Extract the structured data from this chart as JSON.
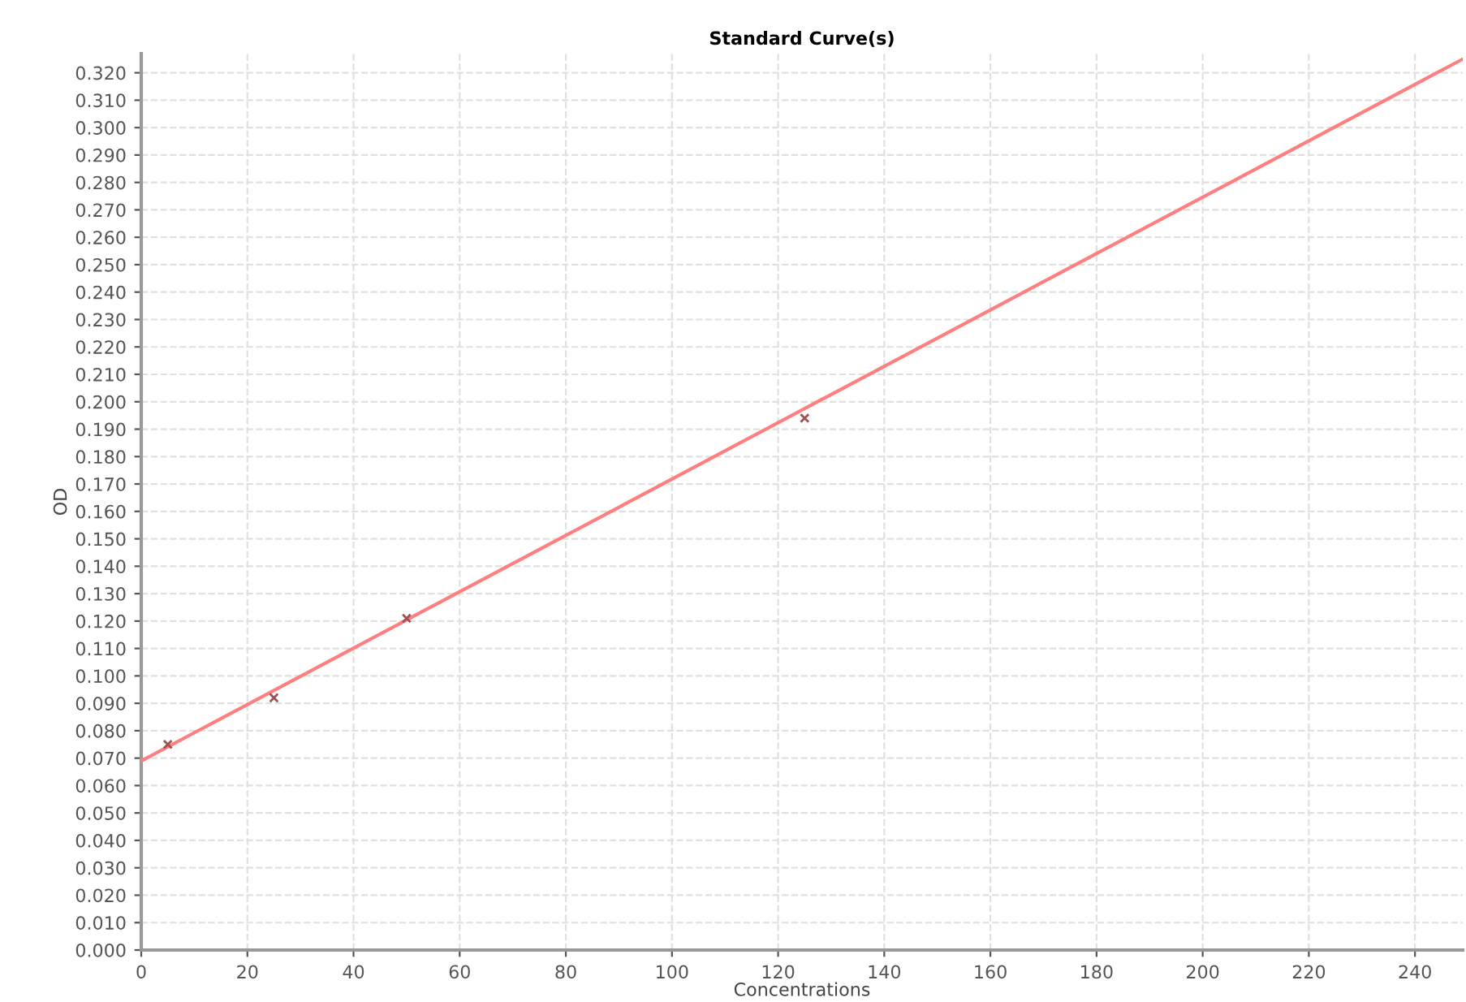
{
  "chart_data": {
    "type": "scatter",
    "title": "Standard Curve(s)",
    "xlabel": "Concentrations",
    "ylabel": "OD",
    "xlim": [
      0,
      249
    ],
    "xticks": [
      0,
      20,
      40,
      60,
      80,
      100,
      120,
      140,
      160,
      180,
      200,
      220,
      240
    ],
    "ylim": [
      0,
      0.327
    ],
    "yticks": [
      {
        "value": 0,
        "label": "0.000"
      },
      {
        "value": 0.01,
        "label": "0.010"
      },
      {
        "value": 0.02,
        "label": "0.020"
      },
      {
        "value": 0.03,
        "label": "0.030"
      },
      {
        "value": 0.04,
        "label": "0.040"
      },
      {
        "value": 0.05,
        "label": "0.050"
      },
      {
        "value": 0.06,
        "label": "0.060"
      },
      {
        "value": 0.07,
        "label": "0.070"
      },
      {
        "value": 0.08,
        "label": "0.080"
      },
      {
        "value": 0.09,
        "label": "0.090"
      },
      {
        "value": 0.1,
        "label": "0.100"
      },
      {
        "value": 0.11,
        "label": "0.110"
      },
      {
        "value": 0.12,
        "label": "0.120"
      },
      {
        "value": 0.13,
        "label": "0.130"
      },
      {
        "value": 0.14,
        "label": "0.140"
      },
      {
        "value": 0.15,
        "label": "0.150"
      },
      {
        "value": 0.16,
        "label": "0.160"
      },
      {
        "value": 0.17,
        "label": "0.170"
      },
      {
        "value": 0.18,
        "label": "0.180"
      },
      {
        "value": 0.19,
        "label": "0.190"
      },
      {
        "value": 0.2,
        "label": "0.200"
      },
      {
        "value": 0.21,
        "label": "0.210"
      },
      {
        "value": 0.22,
        "label": "0.220"
      },
      {
        "value": 0.23,
        "label": "0.230"
      },
      {
        "value": 0.24,
        "label": "0.240"
      },
      {
        "value": 0.25,
        "label": "0.250"
      },
      {
        "value": 0.26,
        "label": "0.260"
      },
      {
        "value": 0.27,
        "label": "0.270"
      },
      {
        "value": 0.28,
        "label": "0.280"
      },
      {
        "value": 0.29,
        "label": "0.290"
      },
      {
        "value": 0.3,
        "label": "0.300"
      },
      {
        "value": 0.31,
        "label": "0.310"
      },
      {
        "value": 0.32,
        "label": "0.320"
      }
    ],
    "grid": true,
    "legend": false,
    "series": [
      {
        "type": "line",
        "color": "#ff7f7f",
        "x": [
          0,
          249
        ],
        "values": [
          0.069,
          0.325
        ],
        "marker": "none",
        "line_style": "solid"
      },
      {
        "color": "#a05050",
        "x": [
          5,
          25,
          50,
          125
        ],
        "values": [
          0.075,
          0.092,
          0.121,
          0.194
        ],
        "marker": "cross"
      }
    ]
  }
}
